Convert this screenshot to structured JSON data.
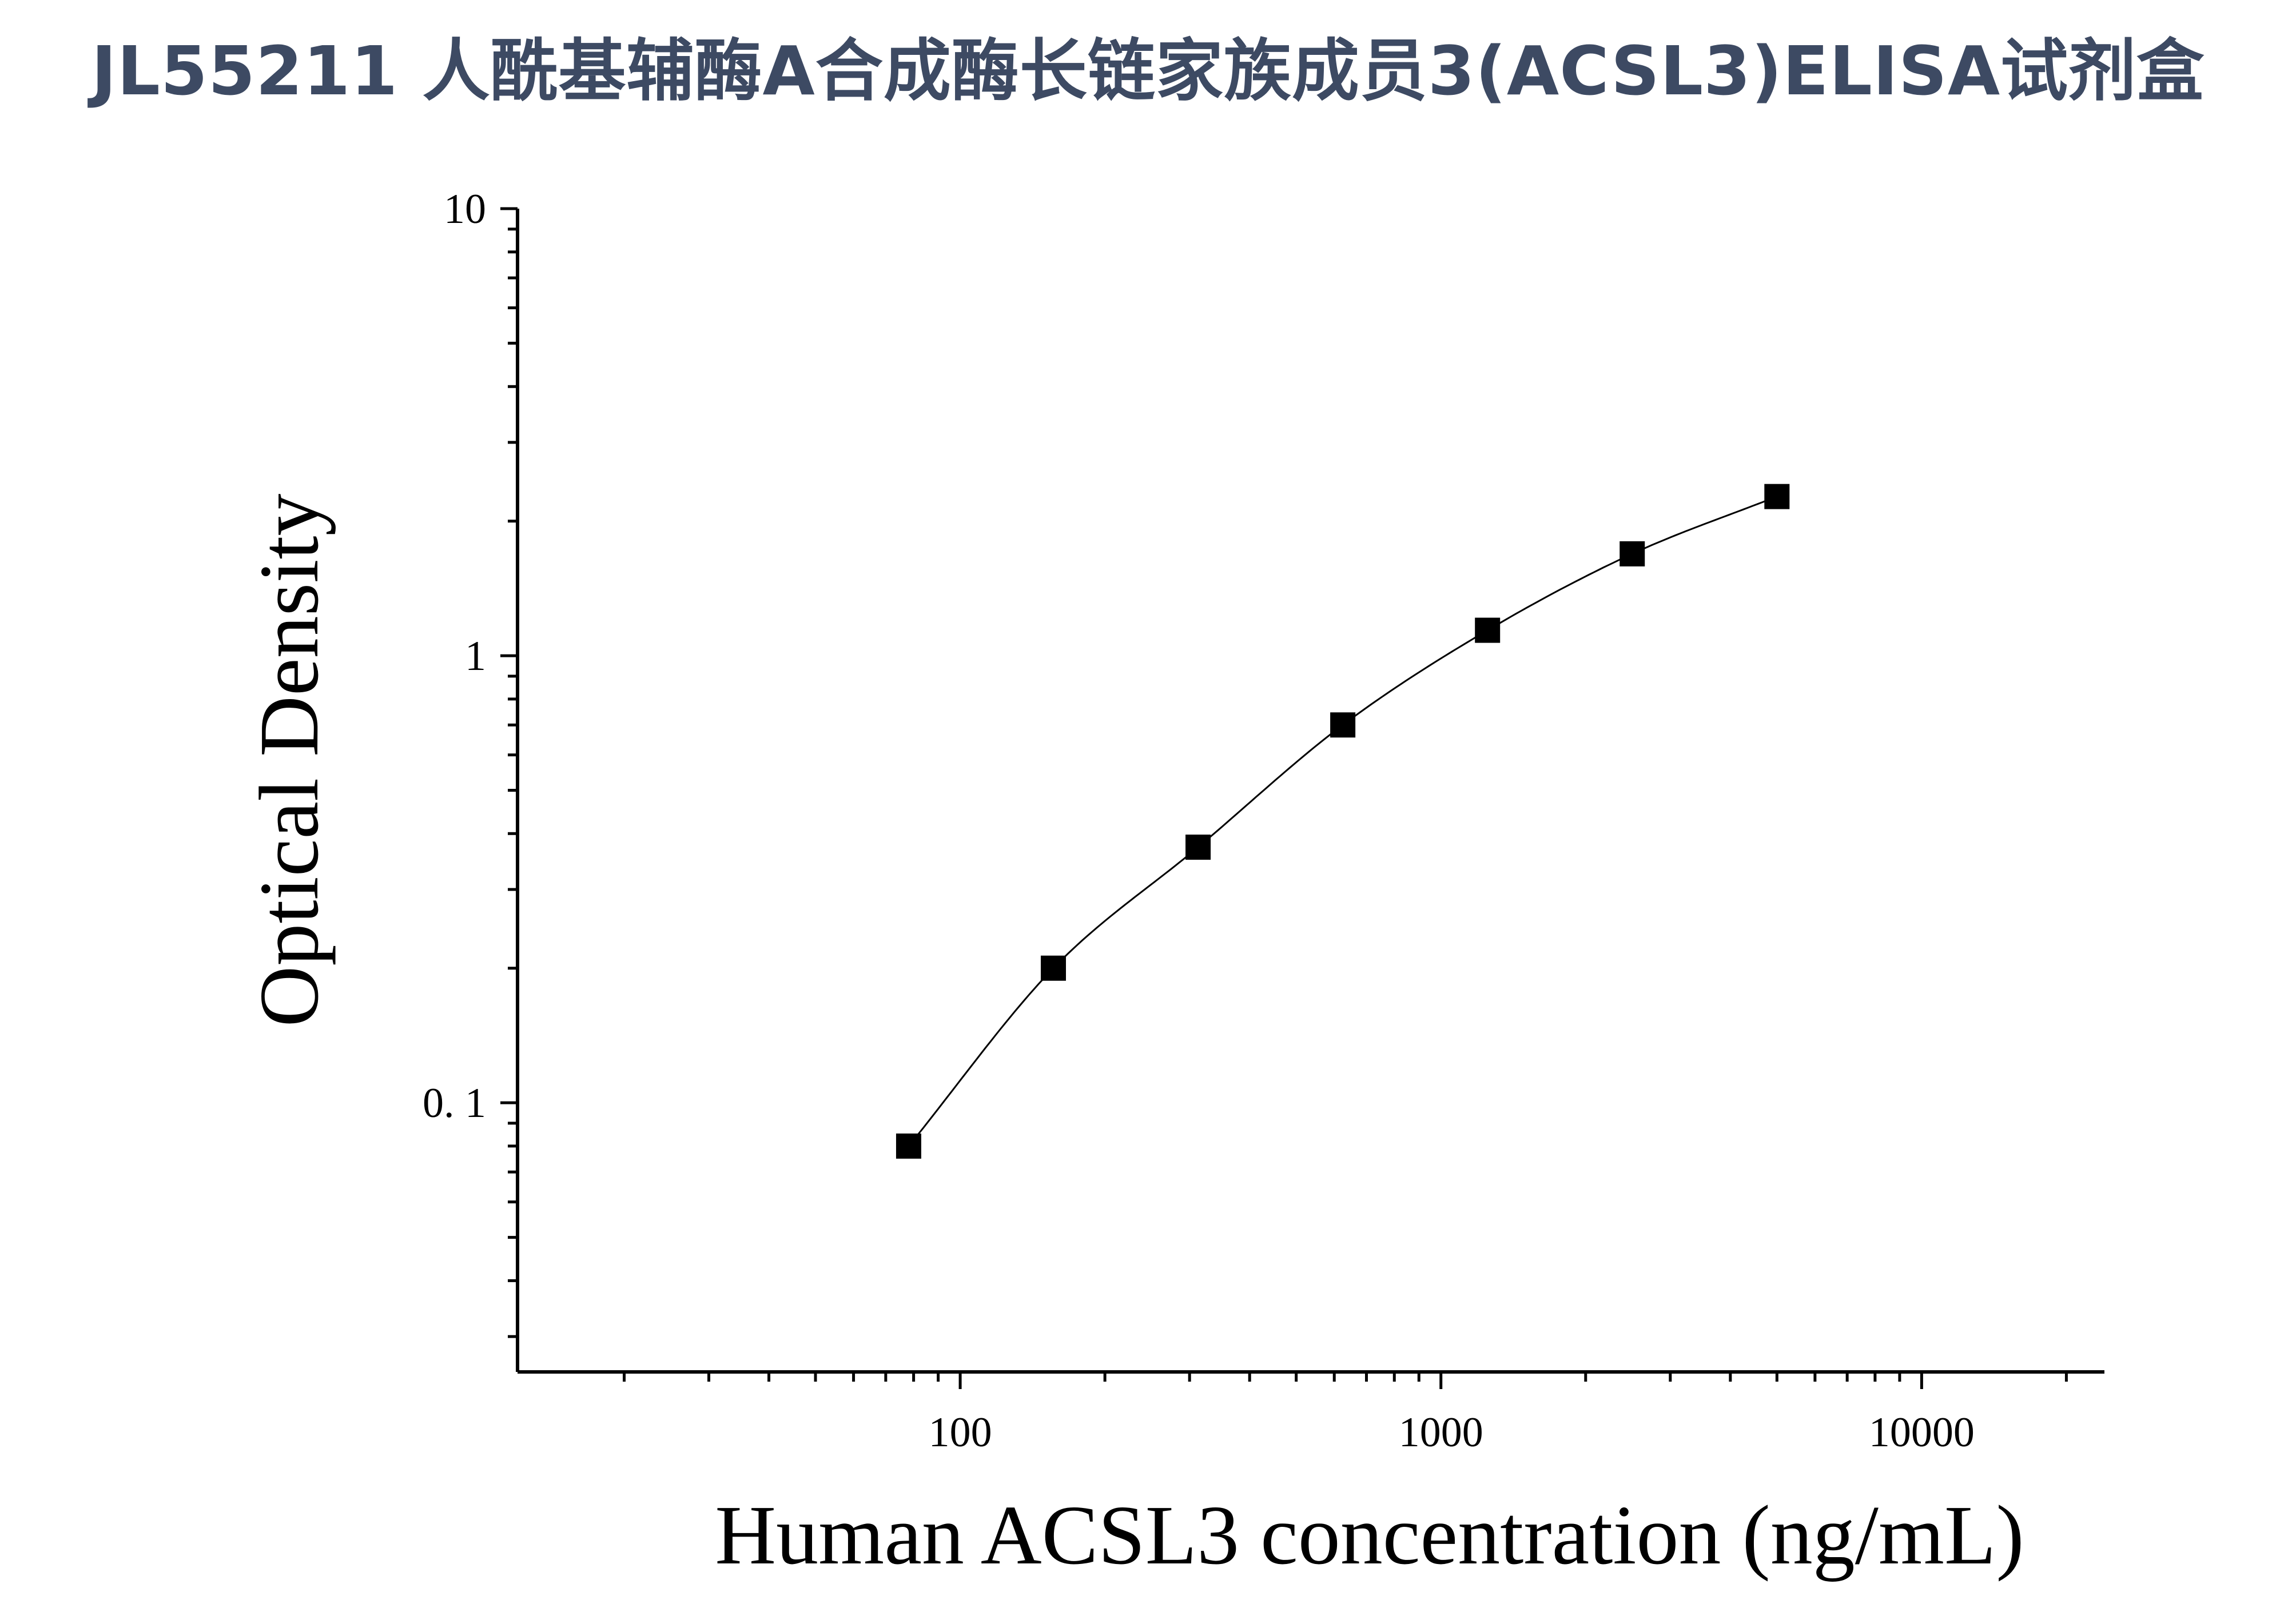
{
  "chart_data": {
    "type": "scatter",
    "title": "JL55211 人酰基辅酶A合成酶长链家族成员3(ACSL3)ELISA试剂盒",
    "xlabel": "Human ACSL3 concentration (ng/mL)",
    "ylabel": "Optical Density",
    "xscale": "log",
    "yscale": "log",
    "xlim": [
      12,
      24000
    ],
    "ylim": [
      0.025,
      10
    ],
    "x_ticks": [
      {
        "value": 100,
        "label": "100"
      },
      {
        "value": 1000,
        "label": "1000"
      },
      {
        "value": 10000,
        "label": "10000"
      }
    ],
    "y_ticks": [
      {
        "value": 0.1,
        "label": "0. 1"
      },
      {
        "value": 1,
        "label": "1"
      },
      {
        "value": 10,
        "label": "10"
      }
    ],
    "series": [
      {
        "marker": "square",
        "color": "#000000",
        "fit_curve": true,
        "x": [
          78.125,
          156.25,
          312.5,
          625,
          1250,
          2500,
          5000
        ],
        "y": [
          0.08,
          0.2,
          0.373,
          0.7,
          1.14,
          1.69,
          2.27
        ]
      }
    ],
    "grid": false,
    "legend": "none",
    "colors": {
      "title": "#3d4a63",
      "axis": "#000000",
      "marker": "#000000"
    }
  }
}
